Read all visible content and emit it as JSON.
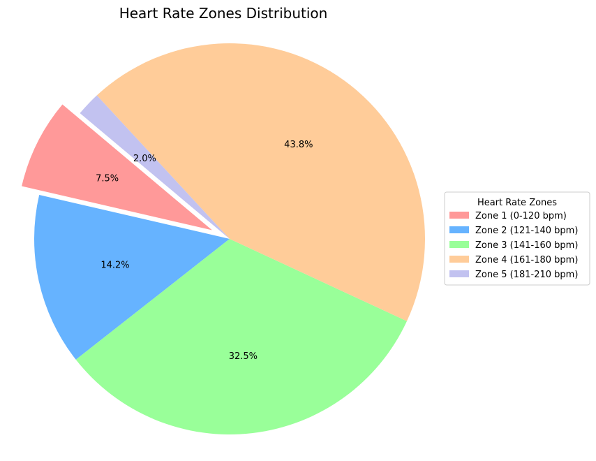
{
  "chart_data": {
    "type": "pie",
    "title": "Heart Rate Zones Distribution",
    "start_angle_deg": 140,
    "counterclock": true,
    "slices": [
      {
        "label": "Zone 1 (0-120 bpm)",
        "value": 7.5,
        "pct_label": "7.5%",
        "color": "#ff9999",
        "explode": true
      },
      {
        "label": "Zone 2 (121-140 bpm)",
        "value": 14.2,
        "pct_label": "14.2%",
        "color": "#66b3ff",
        "explode": false
      },
      {
        "label": "Zone 3 (141-160 bpm)",
        "value": 32.5,
        "pct_label": "32.5%",
        "color": "#99ff99",
        "explode": false
      },
      {
        "label": "Zone 4 (161-180 bpm)",
        "value": 43.8,
        "pct_label": "43.8%",
        "color": "#ffcc99",
        "explode": false
      },
      {
        "label": "Zone 5 (181-210 bpm)",
        "value": 2.0,
        "pct_label": "2.0%",
        "color": "#c2c2f0",
        "explode": false
      }
    ],
    "legend": {
      "title": "Heart Rate Zones",
      "placement": "center-right"
    }
  }
}
